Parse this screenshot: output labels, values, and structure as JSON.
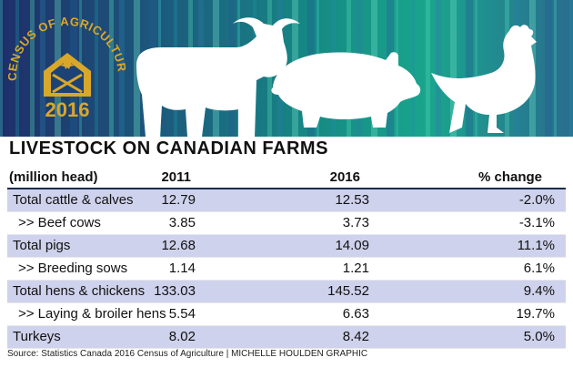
{
  "badge": {
    "arc_text": "CENSUS OF AGRICULTURE",
    "year": "2016"
  },
  "colors": {
    "badge_gold": "#d9a72a",
    "row_shade": "#cfd2ec",
    "rule": "#1a2a4a"
  },
  "icons": [
    "barn-icon",
    "maple-leaf-icon",
    "cow-icon",
    "pig-icon",
    "chicken-icon"
  ],
  "title": "LIVESTOCK ON CANADIAN FARMS",
  "chart_data": {
    "type": "table",
    "columns": [
      "(million head)",
      "2011",
      "2016",
      "% change"
    ],
    "rows": [
      {
        "label": "Total cattle & calves",
        "v2011": "12.79",
        "v2016": "12.53",
        "change": "-2.0%",
        "shaded": true,
        "sub": false
      },
      {
        "label": ">> Beef cows",
        "v2011": "3.85",
        "v2016": "3.73",
        "change": "-3.1%",
        "shaded": false,
        "sub": true
      },
      {
        "label": "Total pigs",
        "v2011": "12.68",
        "v2016": "14.09",
        "change": "11.1%",
        "shaded": true,
        "sub": false
      },
      {
        "label": ">> Breeding sows",
        "v2011": "1.14",
        "v2016": "1.21",
        "change": "6.1%",
        "shaded": false,
        "sub": true
      },
      {
        "label": "Total hens & chickens",
        "v2011": "133.03",
        "v2016": "145.52",
        "change": "9.4%",
        "shaded": true,
        "sub": false
      },
      {
        "label": ">> Laying & broiler hens",
        "v2011": "5.54",
        "v2016": "6.63",
        "change": "19.7%",
        "shaded": false,
        "sub": true
      },
      {
        "label": "Turkeys",
        "v2011": "8.02",
        "v2016": "8.42",
        "change": "5.0%",
        "shaded": true,
        "sub": false
      }
    ]
  },
  "source": "Source: Statistics Canada 2016 Census of Agriculture  |  MICHELLE HOULDEN GRAPHIC"
}
